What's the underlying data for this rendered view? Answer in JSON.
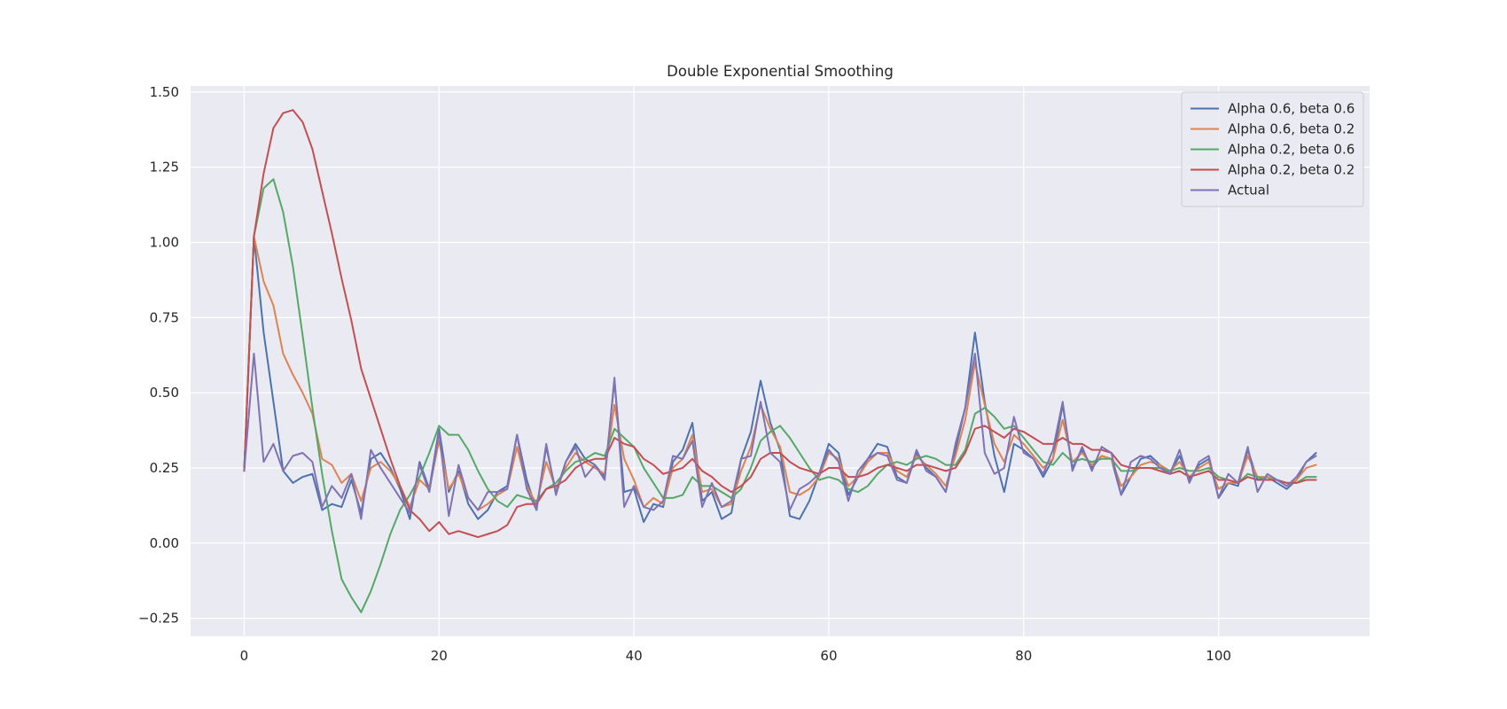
{
  "chart_data": {
    "type": "line",
    "title": "Double Exponential Smoothing",
    "xlabel": "",
    "ylabel": "",
    "xlim": [
      -5.5,
      115.5
    ],
    "ylim": [
      -0.31,
      1.52
    ],
    "xticks": [
      0,
      20,
      40,
      60,
      80,
      100
    ],
    "yticks": [
      -0.25,
      0,
      0.25,
      0.5,
      0.75,
      1.0,
      1.25,
      1.5
    ],
    "ytick_labels": [
      "−0.25",
      "0.00",
      "0.25",
      "0.50",
      "0.75",
      "1.00",
      "1.25",
      "1.50"
    ],
    "grid": true,
    "legend_position": "top-right",
    "colors": {
      "background": "#EAEAF2",
      "grid": "#FFFFFF",
      "text": "#262626"
    },
    "series": [
      {
        "name": "Alpha 0.6, beta 0.6",
        "color": "#4C72B0",
        "values": [
          0.24,
          1.02,
          0.7,
          0.47,
          0.24,
          0.2,
          0.22,
          0.23,
          0.11,
          0.13,
          0.12,
          0.21,
          0.1,
          0.28,
          0.3,
          0.25,
          0.18,
          0.08,
          0.27,
          0.18,
          0.38,
          0.17,
          0.24,
          0.13,
          0.08,
          0.11,
          0.17,
          0.19,
          0.36,
          0.21,
          0.11,
          0.32,
          0.17,
          0.27,
          0.33,
          0.28,
          0.26,
          0.22,
          0.54,
          0.17,
          0.18,
          0.07,
          0.13,
          0.12,
          0.27,
          0.31,
          0.4,
          0.14,
          0.17,
          0.08,
          0.1,
          0.28,
          0.37,
          0.54,
          0.4,
          0.31,
          0.09,
          0.08,
          0.14,
          0.23,
          0.33,
          0.3,
          0.16,
          0.22,
          0.28,
          0.33,
          0.32,
          0.22,
          0.2,
          0.3,
          0.25,
          0.22,
          0.17,
          0.31,
          0.45,
          0.7,
          0.47,
          0.29,
          0.17,
          0.33,
          0.31,
          0.28,
          0.22,
          0.28,
          0.46,
          0.25,
          0.31,
          0.25,
          0.29,
          0.28,
          0.16,
          0.22,
          0.28,
          0.29,
          0.26,
          0.23,
          0.29,
          0.21,
          0.26,
          0.28,
          0.15,
          0.2,
          0.19,
          0.31,
          0.21,
          0.22,
          0.2,
          0.18,
          0.21,
          0.27,
          0.3
        ]
      },
      {
        "name": "Alpha 0.6, beta 0.2",
        "color": "#DD8452",
        "values": [
          0.24,
          1.02,
          0.87,
          0.79,
          0.63,
          0.56,
          0.5,
          0.43,
          0.28,
          0.26,
          0.2,
          0.23,
          0.14,
          0.25,
          0.27,
          0.24,
          0.19,
          0.12,
          0.21,
          0.18,
          0.34,
          0.18,
          0.23,
          0.15,
          0.11,
          0.13,
          0.16,
          0.18,
          0.32,
          0.19,
          0.13,
          0.27,
          0.18,
          0.25,
          0.3,
          0.27,
          0.25,
          0.23,
          0.46,
          0.28,
          0.21,
          0.12,
          0.15,
          0.13,
          0.25,
          0.28,
          0.36,
          0.17,
          0.18,
          0.12,
          0.13,
          0.24,
          0.32,
          0.46,
          0.38,
          0.32,
          0.17,
          0.16,
          0.18,
          0.22,
          0.3,
          0.28,
          0.19,
          0.22,
          0.27,
          0.3,
          0.3,
          0.24,
          0.22,
          0.29,
          0.26,
          0.23,
          0.19,
          0.29,
          0.41,
          0.6,
          0.46,
          0.33,
          0.27,
          0.36,
          0.33,
          0.29,
          0.25,
          0.28,
          0.41,
          0.27,
          0.3,
          0.26,
          0.29,
          0.28,
          0.19,
          0.22,
          0.26,
          0.27,
          0.26,
          0.24,
          0.27,
          0.22,
          0.25,
          0.27,
          0.18,
          0.2,
          0.2,
          0.29,
          0.22,
          0.22,
          0.21,
          0.19,
          0.21,
          0.25,
          0.26
        ]
      },
      {
        "name": "Alpha 0.2, beta 0.6",
        "color": "#55A868",
        "values": [
          0.24,
          1.02,
          1.18,
          1.21,
          1.1,
          0.92,
          0.69,
          0.45,
          0.23,
          0.04,
          -0.12,
          -0.18,
          -0.23,
          -0.16,
          -0.07,
          0.03,
          0.11,
          0.16,
          0.22,
          0.3,
          0.39,
          0.36,
          0.36,
          0.31,
          0.24,
          0.18,
          0.14,
          0.12,
          0.16,
          0.15,
          0.14,
          0.18,
          0.2,
          0.24,
          0.27,
          0.28,
          0.3,
          0.29,
          0.38,
          0.35,
          0.32,
          0.25,
          0.2,
          0.15,
          0.15,
          0.16,
          0.22,
          0.19,
          0.19,
          0.17,
          0.15,
          0.18,
          0.25,
          0.34,
          0.37,
          0.39,
          0.35,
          0.3,
          0.25,
          0.21,
          0.22,
          0.21,
          0.18,
          0.17,
          0.19,
          0.23,
          0.26,
          0.27,
          0.26,
          0.28,
          0.29,
          0.28,
          0.26,
          0.26,
          0.31,
          0.43,
          0.45,
          0.42,
          0.38,
          0.39,
          0.35,
          0.31,
          0.27,
          0.26,
          0.3,
          0.27,
          0.28,
          0.27,
          0.28,
          0.28,
          0.24,
          0.24,
          0.25,
          0.25,
          0.25,
          0.24,
          0.25,
          0.24,
          0.24,
          0.25,
          0.22,
          0.21,
          0.2,
          0.23,
          0.22,
          0.21,
          0.21,
          0.2,
          0.2,
          0.22,
          0.22
        ]
      },
      {
        "name": "Alpha 0.2, beta 0.2",
        "color": "#C44E52",
        "values": [
          0.24,
          1.02,
          1.23,
          1.38,
          1.43,
          1.44,
          1.4,
          1.31,
          1.17,
          1.03,
          0.88,
          0.74,
          0.58,
          0.48,
          0.38,
          0.28,
          0.19,
          0.11,
          0.08,
          0.04,
          0.07,
          0.03,
          0.04,
          0.03,
          0.02,
          0.03,
          0.04,
          0.06,
          0.12,
          0.13,
          0.13,
          0.18,
          0.19,
          0.21,
          0.25,
          0.27,
          0.28,
          0.28,
          0.35,
          0.33,
          0.32,
          0.28,
          0.26,
          0.23,
          0.24,
          0.25,
          0.28,
          0.24,
          0.22,
          0.19,
          0.17,
          0.19,
          0.22,
          0.28,
          0.3,
          0.3,
          0.27,
          0.25,
          0.24,
          0.23,
          0.25,
          0.25,
          0.22,
          0.22,
          0.23,
          0.25,
          0.26,
          0.25,
          0.24,
          0.26,
          0.26,
          0.25,
          0.24,
          0.25,
          0.3,
          0.38,
          0.39,
          0.37,
          0.35,
          0.38,
          0.37,
          0.35,
          0.33,
          0.33,
          0.35,
          0.33,
          0.33,
          0.31,
          0.31,
          0.3,
          0.26,
          0.25,
          0.25,
          0.25,
          0.24,
          0.23,
          0.24,
          0.22,
          0.23,
          0.24,
          0.21,
          0.21,
          0.2,
          0.22,
          0.21,
          0.21,
          0.21,
          0.2,
          0.2,
          0.21,
          0.21
        ]
      },
      {
        "name": "Actual",
        "color": "#8172B3",
        "values": [
          0.24,
          0.63,
          0.27,
          0.33,
          0.24,
          0.29,
          0.3,
          0.27,
          0.12,
          0.19,
          0.15,
          0.23,
          0.08,
          0.31,
          0.25,
          0.2,
          0.15,
          0.1,
          0.26,
          0.17,
          0.37,
          0.09,
          0.26,
          0.15,
          0.11,
          0.17,
          0.17,
          0.18,
          0.36,
          0.18,
          0.11,
          0.33,
          0.16,
          0.27,
          0.32,
          0.22,
          0.26,
          0.21,
          0.55,
          0.12,
          0.19,
          0.12,
          0.11,
          0.14,
          0.29,
          0.28,
          0.34,
          0.12,
          0.2,
          0.12,
          0.14,
          0.28,
          0.29,
          0.47,
          0.3,
          0.27,
          0.11,
          0.18,
          0.2,
          0.23,
          0.31,
          0.27,
          0.14,
          0.24,
          0.28,
          0.3,
          0.29,
          0.21,
          0.2,
          0.31,
          0.24,
          0.22,
          0.17,
          0.33,
          0.45,
          0.63,
          0.3,
          0.23,
          0.25,
          0.42,
          0.3,
          0.28,
          0.23,
          0.31,
          0.47,
          0.24,
          0.32,
          0.24,
          0.32,
          0.3,
          0.16,
          0.27,
          0.29,
          0.28,
          0.25,
          0.23,
          0.31,
          0.2,
          0.27,
          0.29,
          0.15,
          0.23,
          0.2,
          0.32,
          0.17,
          0.23,
          0.21,
          0.19,
          0.22,
          0.27,
          0.29
        ]
      }
    ]
  }
}
